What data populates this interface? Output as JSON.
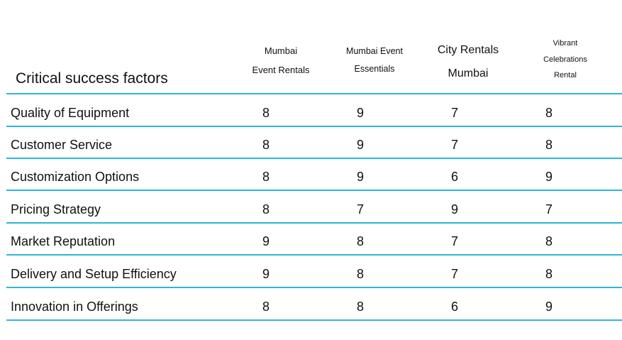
{
  "table": {
    "title": "Critical success factors",
    "columns": [
      [
        "Mumbai",
        "Event Rentals"
      ],
      [
        "Mumbai Event",
        "Essentials"
      ],
      [
        "City Rentals",
        "Mumbai"
      ],
      [
        "Vibrant",
        "Celebrations",
        "Rental"
      ]
    ],
    "rows": [
      {
        "factor": "Quality of Equipment",
        "values": [
          "8",
          "9",
          "7",
          "8"
        ]
      },
      {
        "factor": "Customer Service",
        "values": [
          "8",
          "9",
          "7",
          "8"
        ]
      },
      {
        "factor": "Customization Options",
        "values": [
          "8",
          "9",
          "6",
          "9"
        ]
      },
      {
        "factor": "Pricing Strategy",
        "values": [
          "8",
          "7",
          "9",
          "7"
        ]
      },
      {
        "factor": "Market Reputation",
        "values": [
          "9",
          "8",
          "7",
          "8"
        ]
      },
      {
        "factor": "Delivery and Setup Efficiency",
        "values": [
          "9",
          "8",
          "7",
          "8"
        ]
      },
      {
        "factor": "Innovation in Offerings",
        "values": [
          "8",
          "8",
          "6",
          "9"
        ]
      }
    ],
    "line_color": "#2fb5d8"
  }
}
